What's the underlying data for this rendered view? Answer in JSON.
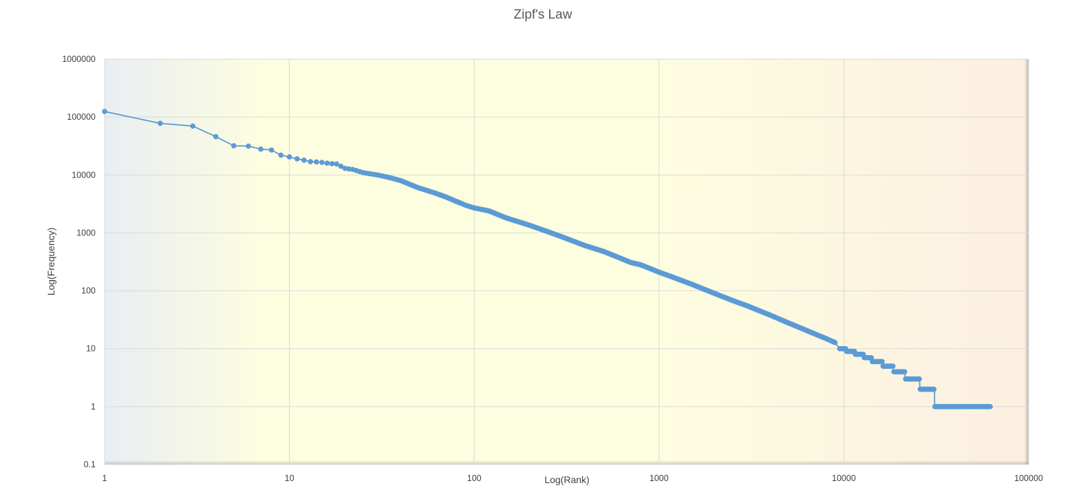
{
  "chart_data": {
    "type": "line",
    "title": "Zipf's Law",
    "xlabel": "Log(Rank)",
    "ylabel": "Log(Frequency)",
    "x_scale": "log",
    "y_scale": "log",
    "xlim": [
      1,
      100000
    ],
    "ylim": [
      0.1,
      1000000
    ],
    "x_ticks": [
      "1",
      "10",
      "100",
      "1000",
      "10000",
      "100000"
    ],
    "y_ticks": [
      "0.1",
      "1",
      "10",
      "100",
      "1000",
      "10000",
      "100000",
      "1000000"
    ],
    "grid": true,
    "legend": "none",
    "colors": {
      "series": "#5b9bd5",
      "plot_bg_left": "#e9eef2",
      "plot_bg_middle": "#fdfde0",
      "plot_bg_right": "#fcefe1",
      "gridline": "#d9d9d9"
    },
    "series": [
      {
        "values_note": "",
        "x": [
          1,
          2,
          3,
          4,
          5,
          6,
          7,
          8,
          9,
          10,
          11,
          12,
          13,
          14,
          15,
          16,
          17,
          18,
          20,
          22,
          25,
          30,
          35,
          40,
          50,
          60,
          70,
          80,
          90,
          100,
          120,
          150,
          200,
          250,
          300,
          400,
          500,
          600,
          700,
          800,
          1000,
          1200,
          1500,
          2000,
          2500,
          3000,
          4000,
          5000,
          6000,
          8000,
          10000,
          12000,
          15000,
          18000,
          22000,
          26000,
          31000,
          45000,
          62000
        ],
        "y": [
          125000,
          78000,
          70000,
          46000,
          32000,
          31500,
          28000,
          27000,
          22000,
          20500,
          19000,
          18000,
          17000,
          16800,
          16500,
          16000,
          15700,
          15500,
          13000,
          12500,
          11000,
          10000,
          9000,
          8000,
          6000,
          5000,
          4200,
          3500,
          3000,
          2700,
          2400,
          1800,
          1350,
          1050,
          850,
          600,
          480,
          380,
          310,
          280,
          210,
          170,
          130,
          90,
          68,
          55,
          38,
          28,
          22,
          15,
          11,
          8.5,
          6,
          4.5,
          3.2,
          2.6,
          2,
          1,
          1
        ]
      }
    ]
  }
}
